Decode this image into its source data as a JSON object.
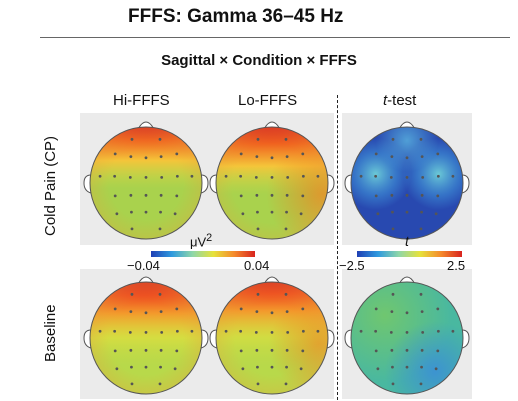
{
  "header": {
    "title": "FFFS: Gamma 36–45 Hz",
    "subtitle": "Sagittal × Condition × FFFS"
  },
  "columns": {
    "hi": "Hi-FFFS",
    "lo": "Lo-FFFS",
    "ttest_italic": "t",
    "ttest_rest": "-test"
  },
  "rows": {
    "cold_pain": "Cold Pain (CP)",
    "baseline": "Baseline"
  },
  "colorbar_power": {
    "unit": "μV",
    "unit_exp": "2",
    "min_label": "−0.04",
    "max_label": "0.04"
  },
  "colorbar_t": {
    "unit": "t",
    "min_label": "−2.5",
    "max_label": "2.5"
  },
  "colors": {
    "frontal_max": "#d8231f",
    "center_green": "#a9d24d",
    "t_low_blue": "#2849b0",
    "panel_bg": "#ebebeb"
  }
}
